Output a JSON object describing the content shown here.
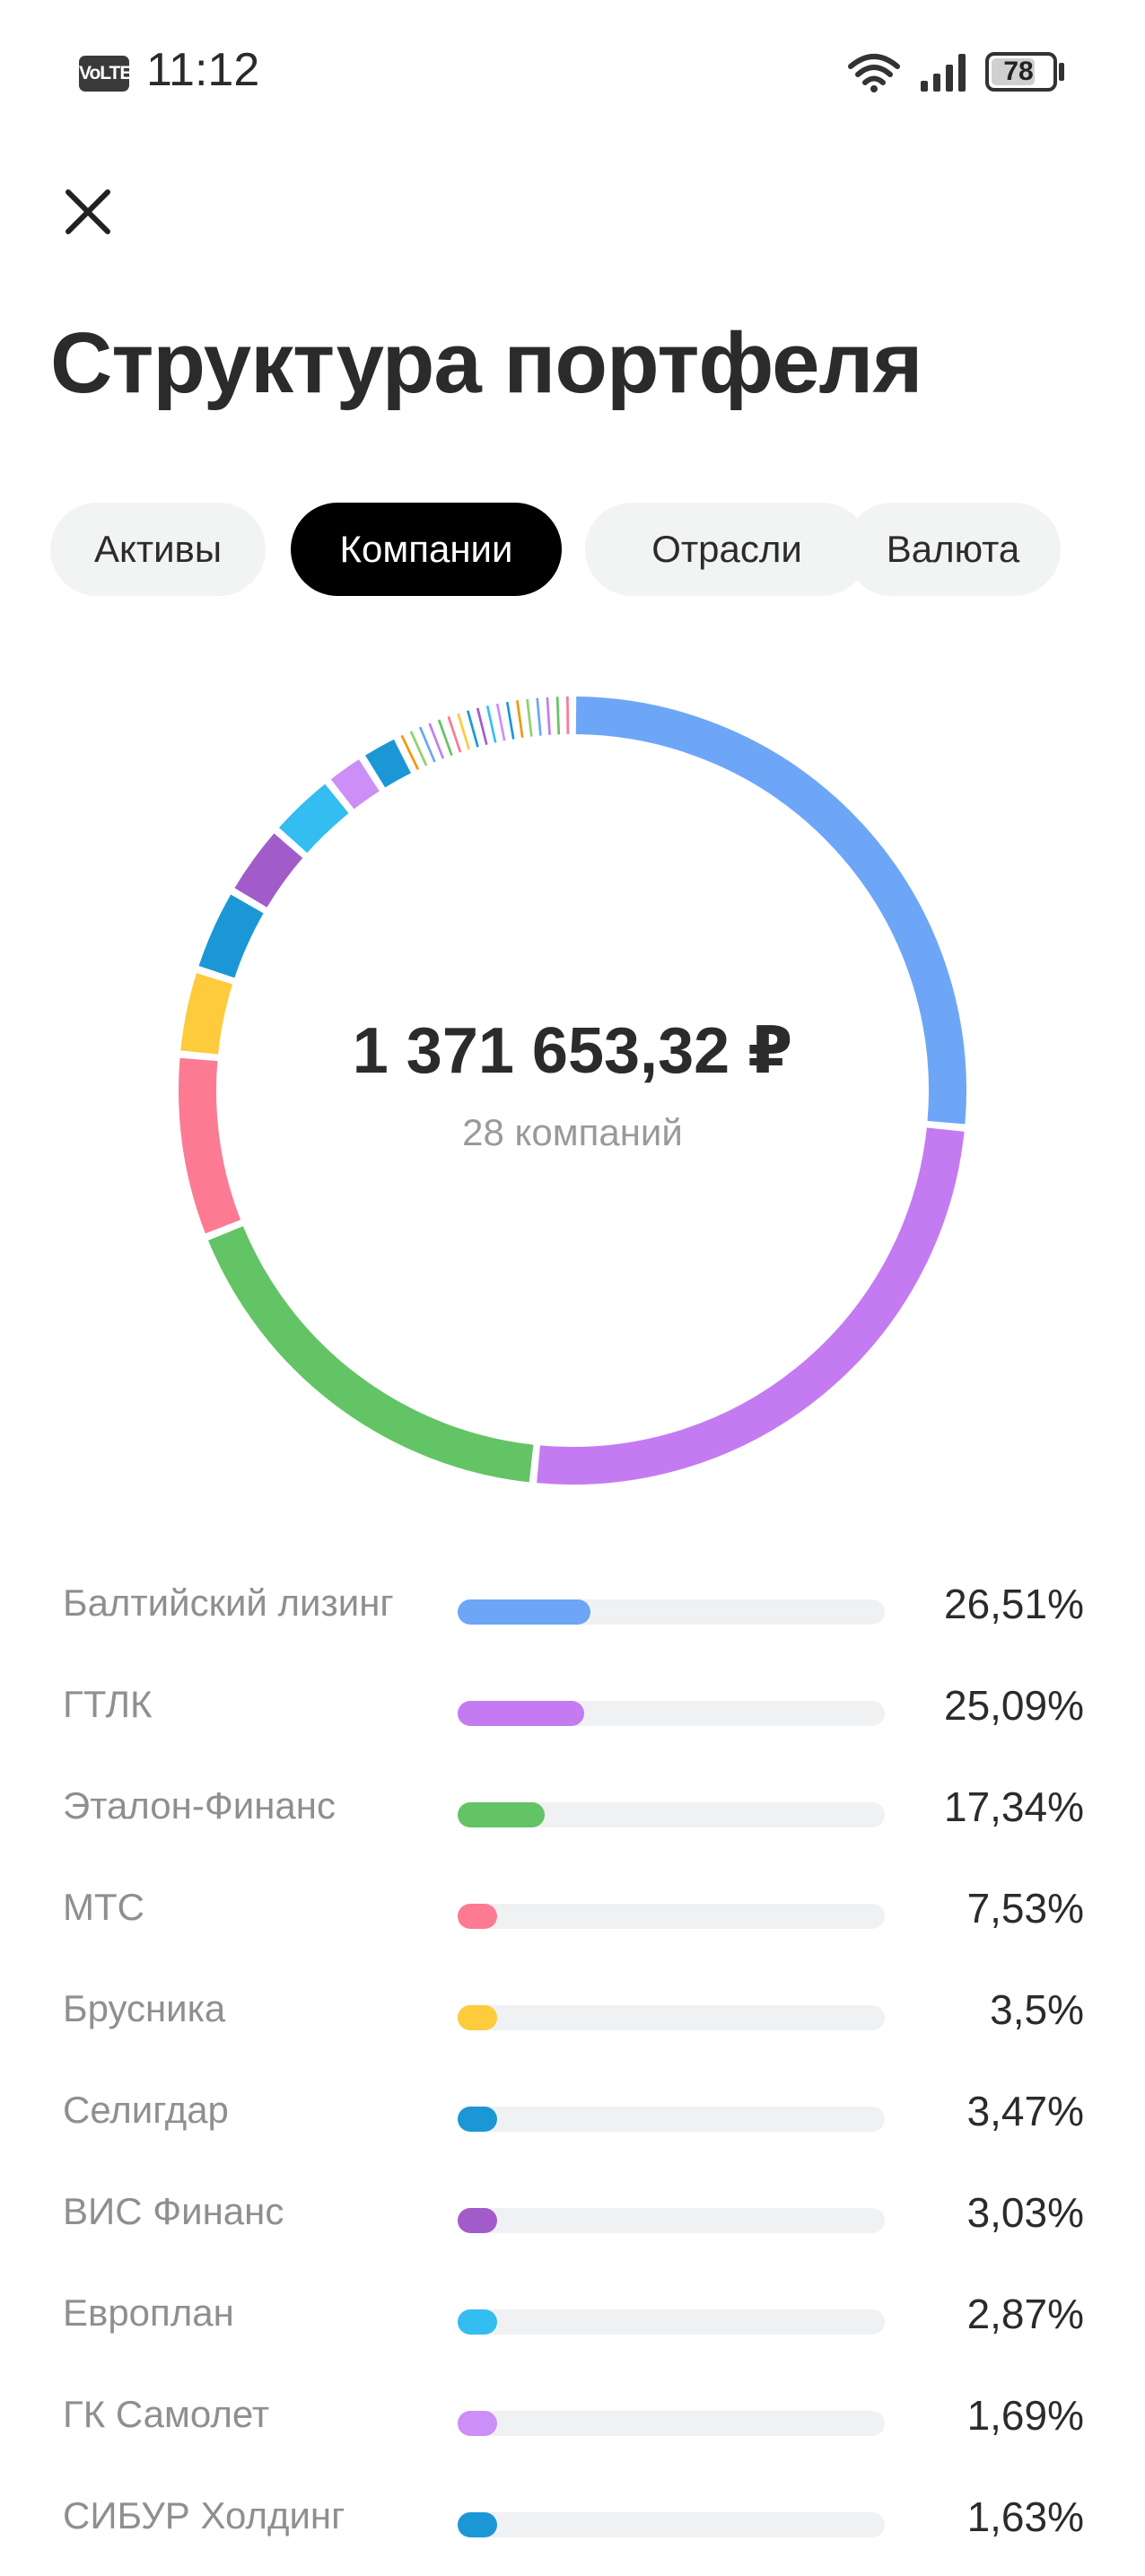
{
  "status_bar": {
    "network_badge": "VoLTE",
    "time": "11:12",
    "battery": "78",
    "battery_level": 0.78,
    "icons": [
      "wifi-icon",
      "signal-icon",
      "battery-icon"
    ]
  },
  "header": {
    "close_icon": "close-icon",
    "title": "Структура портфеля"
  },
  "tabs": [
    {
      "label": "Активы",
      "active": false
    },
    {
      "label": "Компании",
      "active": true
    },
    {
      "label": "Отрасли",
      "active": false
    },
    {
      "label": "Валюта",
      "active": false
    }
  ],
  "summary": {
    "total": "1 371 653,32 ₽",
    "count": "28 компаний"
  },
  "chart_data": {
    "type": "donut",
    "total_companies": 28,
    "series": [
      {
        "name": "Балтийский лизинг",
        "value": 26.51,
        "color": "#6ea6f7"
      },
      {
        "name": "ГТЛК",
        "value": 25.09,
        "color": "#c47bf2"
      },
      {
        "name": "Эталон-Финанс",
        "value": 17.34,
        "color": "#63c466"
      },
      {
        "name": "МТС",
        "value": 7.53,
        "color": "#fd7a93"
      },
      {
        "name": "Брусника",
        "value": 3.5,
        "color": "#fdcb3b"
      },
      {
        "name": "Селигдар",
        "value": 3.47,
        "color": "#1c97d6"
      },
      {
        "name": "ВИС Финанс",
        "value": 3.03,
        "color": "#a15cc9"
      },
      {
        "name": "Европлан",
        "value": 2.87,
        "color": "#33bdf1"
      },
      {
        "name": "ГК Самолет",
        "value": 1.69,
        "color": "#cc8ef7"
      },
      {
        "name": "СИБУР Холдинг",
        "value": 1.63,
        "color": "#1c97d6"
      }
    ],
    "other_segments_colors": [
      "#f5960f",
      "#8ed36e",
      "#6ea6f7",
      "#c47bf2",
      "#63c466",
      "#fd7a93",
      "#fdcb3b",
      "#1c97d6",
      "#a15cc9",
      "#33bdf1",
      "#cc8ef7",
      "#1c97d6",
      "#f5960f",
      "#8ed36e",
      "#6ea6f7",
      "#c47bf2",
      "#63c466",
      "#fd7a93"
    ]
  },
  "legend": {
    "rows": [
      {
        "name": "Балтийский лизинг",
        "value_label": "26,51%",
        "value": 26.51,
        "color": "#6ea6f7"
      },
      {
        "name": "ГТЛК",
        "value_label": "25,09%",
        "value": 25.09,
        "color": "#c47bf2"
      },
      {
        "name": "Эталон-Финанс",
        "value_label": "17,34%",
        "value": 17.34,
        "color": "#63c466"
      },
      {
        "name": "МТС",
        "value_label": "7,53%",
        "value": 7.53,
        "color": "#fd7a93"
      },
      {
        "name": "Брусника",
        "value_label": "3,5%",
        "value": 3.5,
        "color": "#fdcb3b"
      },
      {
        "name": "Селигдар",
        "value_label": "3,47%",
        "value": 3.47,
        "color": "#1c97d6"
      },
      {
        "name": "ВИС Финанс",
        "value_label": "3,03%",
        "value": 3.03,
        "color": "#a15cc9"
      },
      {
        "name": "Европлан",
        "value_label": "2,87%",
        "value": 2.87,
        "color": "#33bdf1"
      },
      {
        "name": "ГК Самолет",
        "value_label": "1,69%",
        "value": 1.69,
        "color": "#cc8ef7"
      },
      {
        "name": "СИБУР Холдинг",
        "value_label": "1,63%",
        "value": 1.63,
        "color": "#1c97d6"
      }
    ]
  }
}
